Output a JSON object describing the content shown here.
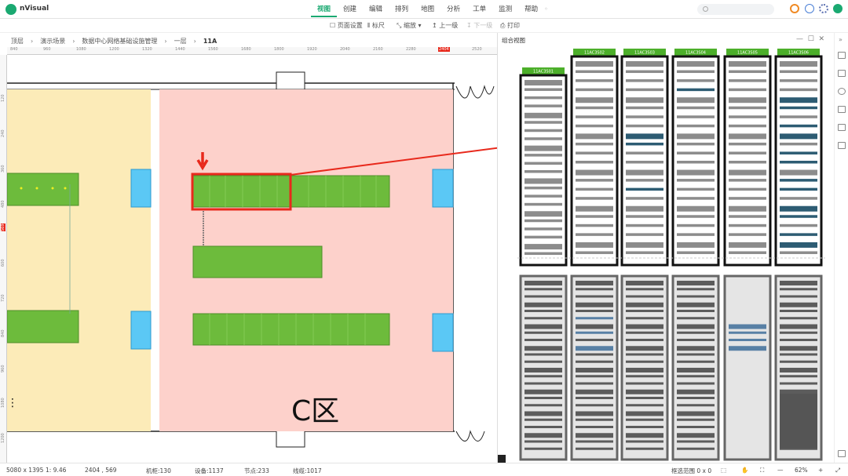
{
  "app": {
    "name": "nVisual"
  },
  "menu": [
    {
      "label": "视图",
      "active": true
    },
    {
      "label": "创建"
    },
    {
      "label": "编辑"
    },
    {
      "label": "排列"
    },
    {
      "label": "地图"
    },
    {
      "label": "分析"
    },
    {
      "label": "工单"
    },
    {
      "label": "监测"
    },
    {
      "label": "帮助"
    }
  ],
  "toolbar": {
    "page_setup": "页面设置",
    "ruler": "标尺",
    "zoom": "缩放",
    "up_level": "上一级",
    "down_level": "下一级",
    "print": "打印"
  },
  "breadcrumb": [
    "顶层",
    "演示场景",
    "数据中心网络基础设施管理",
    "一层",
    "11A"
  ],
  "ruler": {
    "top_labels": [
      "840",
      "960",
      "1080",
      "1200",
      "1320",
      "1440",
      "1560",
      "1680",
      "1800",
      "1920",
      "2040",
      "2160",
      "2280",
      "2404",
      "2520"
    ],
    "current": "2404",
    "left_labels": [
      "120",
      "240",
      "360",
      "480",
      "600",
      "720",
      "840",
      "960",
      "1080",
      "1200"
    ],
    "left_current": "569"
  },
  "canvas": {
    "room_label": "C区",
    "colors": {
      "yellow_zone": "#fcebb8",
      "pink_zone": "#fdd1cb",
      "rack": "#6dbb3c",
      "highlight": "#e8291c",
      "door": "#5bc8f5"
    }
  },
  "panel": {
    "title": "组合视图",
    "racks_top": [
      "11AC3S01",
      "11AC3S02",
      "11AC3S03",
      "11AC3S04",
      "11AC3S05",
      "11AC3S06"
    ]
  },
  "status": {
    "size": "5080 x 1395",
    "scale": "1: 9.46",
    "coords": "2404 , 569",
    "cabinets": "机柜:130",
    "devices": "设备:1137",
    "nodes": "节点:233",
    "cables": "线缆:1017",
    "selection": "框选范围 0 x 0",
    "zoom_level": "62%"
  }
}
